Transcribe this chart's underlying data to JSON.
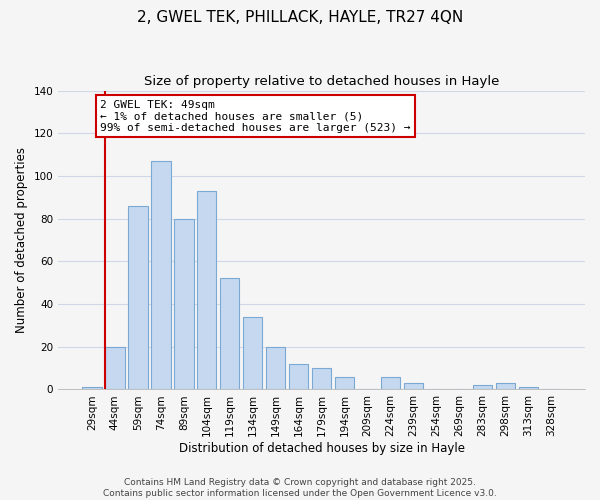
{
  "title": "2, GWEL TEK, PHILLACK, HAYLE, TR27 4QN",
  "subtitle": "Size of property relative to detached houses in Hayle",
  "xlabel": "Distribution of detached houses by size in Hayle",
  "ylabel": "Number of detached properties",
  "bar_color": "#c5d8f0",
  "bar_edge_color": "#7aaad4",
  "categories": [
    "29sqm",
    "44sqm",
    "59sqm",
    "74sqm",
    "89sqm",
    "104sqm",
    "119sqm",
    "134sqm",
    "149sqm",
    "164sqm",
    "179sqm",
    "194sqm",
    "209sqm",
    "224sqm",
    "239sqm",
    "254sqm",
    "269sqm",
    "283sqm",
    "298sqm",
    "313sqm",
    "328sqm"
  ],
  "values": [
    1,
    20,
    86,
    107,
    80,
    93,
    52,
    34,
    20,
    12,
    10,
    6,
    0,
    6,
    3,
    0,
    0,
    2,
    3,
    1,
    0
  ],
  "ylim": [
    0,
    140
  ],
  "yticks": [
    0,
    20,
    40,
    60,
    80,
    100,
    120,
    140
  ],
  "annotation_text": "2 GWEL TEK: 49sqm\n← 1% of detached houses are smaller (5)\n99% of semi-detached houses are larger (523) →",
  "vline_color": "#cc0000",
  "footer_line1": "Contains HM Land Registry data © Crown copyright and database right 2025.",
  "footer_line2": "Contains public sector information licensed under the Open Government Licence v3.0.",
  "background_color": "#f5f5f5",
  "grid_color": "#d0d8e8",
  "title_fontsize": 11,
  "subtitle_fontsize": 9.5,
  "axis_label_fontsize": 8.5,
  "tick_fontsize": 7.5,
  "annotation_fontsize": 8,
  "footer_fontsize": 6.5
}
